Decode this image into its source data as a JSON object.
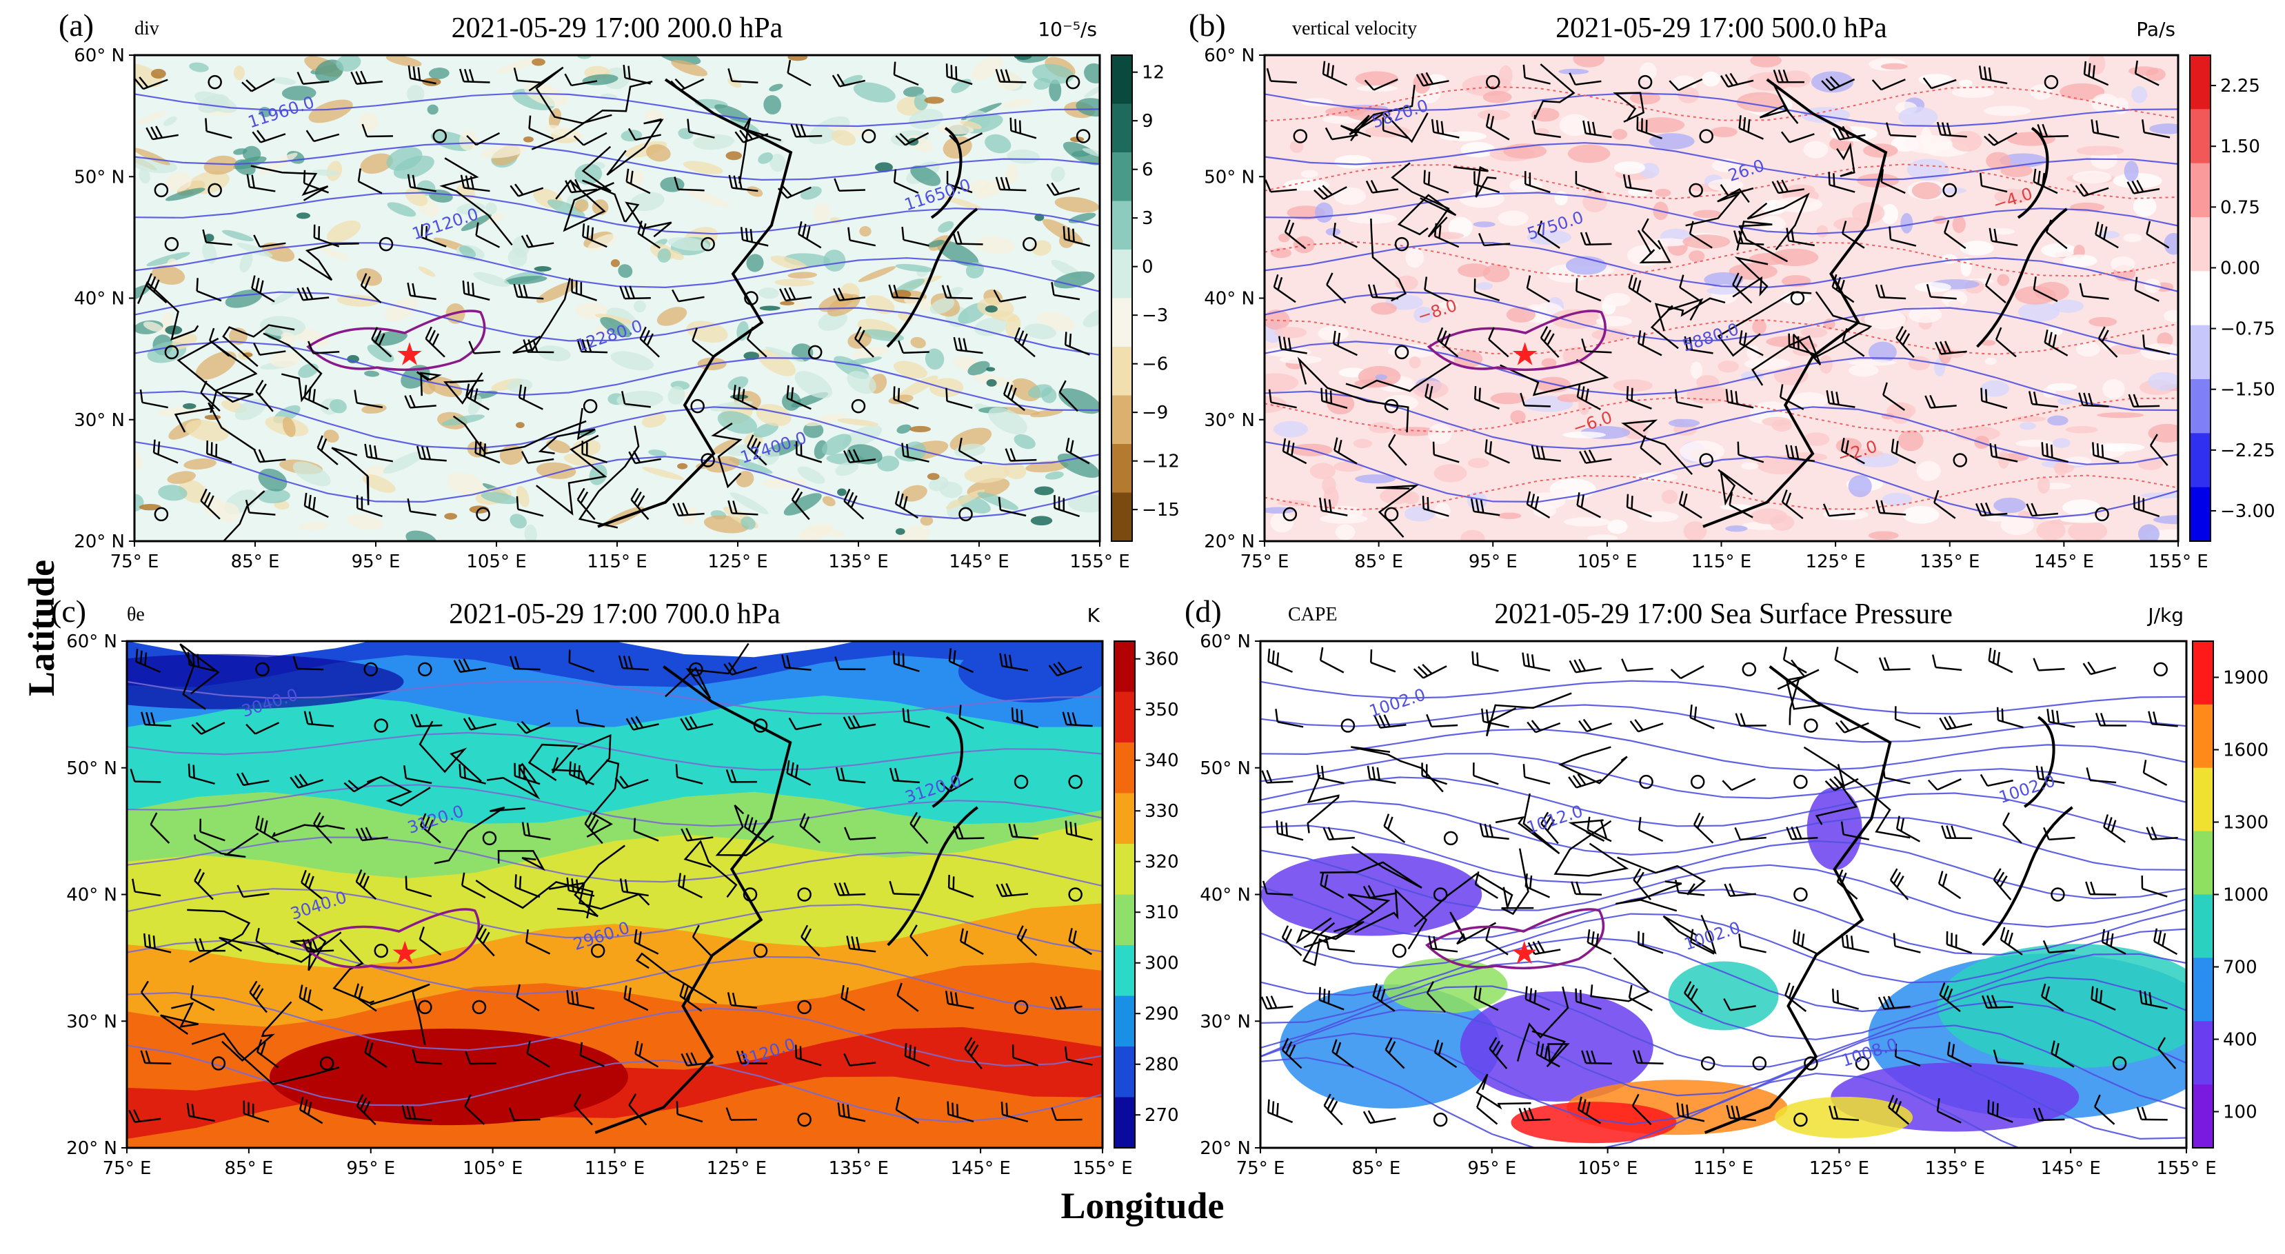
{
  "figure": {
    "xlabel": "Longitude",
    "ylabel": "Latitude"
  },
  "panels": [
    {
      "letter": "(a)",
      "variable": "div",
      "title": "2021-05-29 17:00 200.0 hPa",
      "unit": "10⁻⁵/s",
      "colormap": "diverging-teal-brown",
      "colorbar_ticks": [
        "12",
        "9",
        "6",
        "3",
        "0",
        "−3",
        "−6",
        "−9",
        "−12",
        "−15"
      ],
      "colorbar_colors": [
        "#0a4a3e",
        "#1e6b5e",
        "#4a9a8a",
        "#8ccbbd",
        "#d4eee6",
        "#f7f4ea",
        "#f2dfb0",
        "#dcb170",
        "#b47a30",
        "#7a4a10"
      ],
      "contour_labels": [
        "11960.0",
        "12120.0",
        "12280.0",
        "12400.0",
        "11650.0"
      ]
    },
    {
      "letter": "(b)",
      "variable": "vertical velocity",
      "title": "2021-05-29 17:00 500.0 hPa",
      "unit": "Pa/s",
      "colormap": "bwr",
      "colorbar_ticks": [
        "2.25",
        "1.50",
        "0.75",
        "0.00",
        "−0.75",
        "−1.50",
        "−2.25",
        "−3.00"
      ],
      "colorbar_colors": [
        "#e31a1c",
        "#f25858",
        "#fa9a9a",
        "#fdd5d5",
        "#ffffff",
        "#c7c7fb",
        "#7f7ff6",
        "#3030f0",
        "#0000e8"
      ],
      "contour_labels": [
        "5820.0",
        "5750.0",
        "5880.0",
        "−2.0",
        "−4.0",
        "−8.0",
        "−6.0",
        "26.0"
      ]
    },
    {
      "letter": "(c)",
      "variable": "θe",
      "title": "2021-05-29 17:00 700.0 hPa",
      "unit": "K",
      "colormap": "jet",
      "colorbar_ticks": [
        "360",
        "350",
        "340",
        "330",
        "320",
        "310",
        "300",
        "290",
        "280",
        "270"
      ],
      "colorbar_colors": [
        "#b30000",
        "#e0200e",
        "#f26a0d",
        "#f6a31a",
        "#d9e43a",
        "#8fe06a",
        "#2cd8c8",
        "#1a8fe6",
        "#1a4ad8",
        "#0a0a9e"
      ],
      "contour_labels": [
        "3040.0",
        "3120.0",
        "2960.0",
        "3120.0",
        "3120.0",
        "3040.0"
      ]
    },
    {
      "letter": "(d)",
      "variable": "CAPE",
      "title": "2021-05-29 17:00 Sea Surface Pressure",
      "unit": "J/kg",
      "colormap": "rainbow",
      "colorbar_ticks": [
        "1900",
        "1600",
        "1300",
        "1000",
        "700",
        "400",
        "100"
      ],
      "colorbar_colors": [
        "#ff1a1a",
        "#ff8a1a",
        "#f0e030",
        "#8fe060",
        "#2ad0c0",
        "#2a8ef0",
        "#6a3ef0",
        "#7a1ae0"
      ],
      "contour_labels": [
        "1002.0",
        "1012.0",
        "1002.0",
        "1008.0",
        "1002.0"
      ]
    }
  ],
  "axes": {
    "x_ticks": [
      "75° E",
      "85° E",
      "95° E",
      "105° E",
      "115° E",
      "125° E",
      "135° E",
      "145° E",
      "155° E"
    ],
    "y_ticks": [
      "60° N",
      "50° N",
      "40° N",
      "30° N",
      "20° N"
    ]
  },
  "marker": {
    "symbol": "★",
    "color": "#ff2020"
  }
}
